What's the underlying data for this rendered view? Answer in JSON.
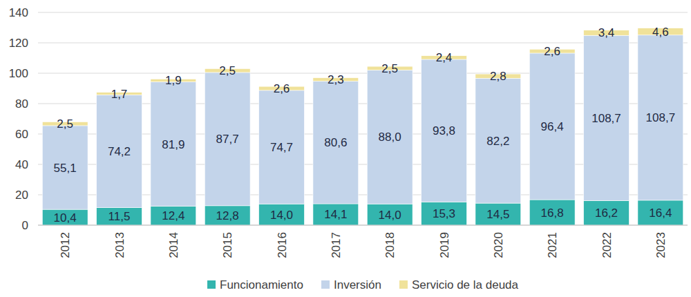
{
  "chart_data": {
    "type": "bar",
    "stacked": true,
    "data_labels": true,
    "grid": true,
    "legend": "bottom",
    "categories": [
      "2012",
      "2013",
      "2014",
      "2015",
      "2016",
      "2017",
      "2018",
      "2019",
      "2020",
      "2021",
      "2022",
      "2023"
    ],
    "ylim": [
      0,
      140
    ],
    "yticks": [
      0,
      20,
      40,
      60,
      80,
      100,
      120,
      140
    ],
    "series": [
      {
        "name": "Funcionamiento",
        "color": "#33b5ae",
        "values": [
          10.4,
          11.5,
          12.4,
          12.8,
          14.0,
          14.1,
          14.0,
          15.3,
          14.5,
          16.8,
          16.2,
          16.4
        ],
        "value_labels": [
          "10,4",
          "11,5",
          "12,4",
          "12,8",
          "14,0",
          "14,1",
          "14,0",
          "15,3",
          "14,5",
          "16,8",
          "16,2",
          "16,4"
        ]
      },
      {
        "name": "Inversión",
        "color": "#c3d4ea",
        "values": [
          55.1,
          74.2,
          81.9,
          87.7,
          74.7,
          80.6,
          88.0,
          93.8,
          82.2,
          96.4,
          108.7,
          108.7
        ],
        "value_labels": [
          "55,1",
          "74,2",
          "81,9",
          "87,7",
          "74,7",
          "80,6",
          "88,0",
          "93,8",
          "82,2",
          "96,4",
          "108,7",
          "108,7"
        ]
      },
      {
        "name": "Servicio de la deuda",
        "color": "#f0e29a",
        "values": [
          2.5,
          1.7,
          1.9,
          2.5,
          2.6,
          2.3,
          2.5,
          2.4,
          2.8,
          2.6,
          3.4,
          4.6
        ],
        "value_labels": [
          "2,5",
          "1,7",
          "1,9",
          "2,5",
          "2,6",
          "2,3",
          "2,5",
          "2,4",
          "2,8",
          "2,6",
          "3,4",
          "4,6"
        ]
      }
    ]
  }
}
